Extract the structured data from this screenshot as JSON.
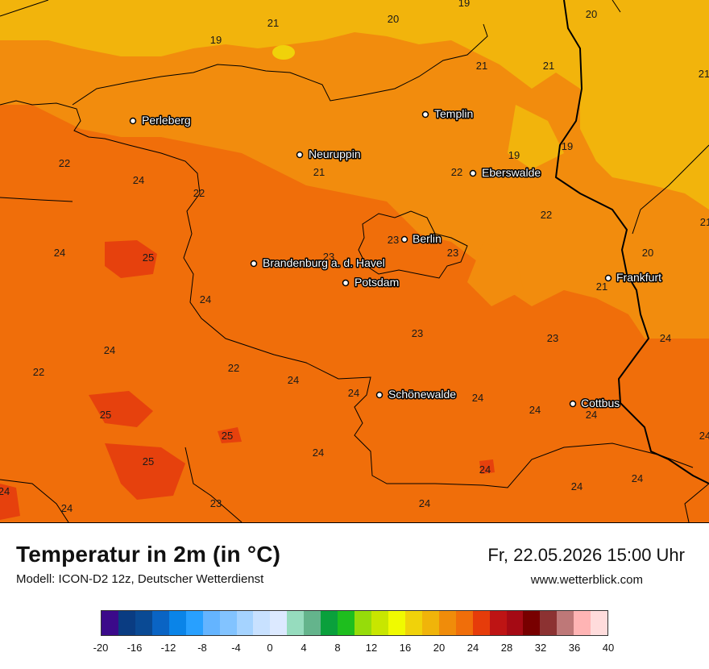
{
  "map": {
    "cities": [
      {
        "name": "Perleberg"
      },
      {
        "name": "Neuruppin"
      },
      {
        "name": "Templin"
      },
      {
        "name": "Eberswalde"
      },
      {
        "name": "Berlin"
      },
      {
        "name": "Brandenburg a. d. Havel"
      },
      {
        "name": "Potsdam"
      },
      {
        "name": "Frankfurt"
      },
      {
        "name": "Schönewalde"
      },
      {
        "name": "Cottbus"
      }
    ],
    "temperature_labels": [
      "19",
      "21",
      "20",
      "19",
      "20",
      "21",
      "21",
      "21",
      "19",
      "22",
      "24",
      "22",
      "21",
      "22",
      "22",
      "19",
      "24",
      "25",
      "23",
      "23",
      "23",
      "20",
      "21",
      "24",
      "24",
      "23",
      "23",
      "22",
      "22",
      "24",
      "24",
      "24",
      "25",
      "25",
      "25",
      "24",
      "24",
      "24",
      "24",
      "24",
      "24",
      "23",
      "24",
      "24",
      "24",
      "24",
      "21",
      "24"
    ]
  },
  "legend": {
    "title": "Temperatur in 2m (in °C)",
    "model": "Modell: ICON-D2 12z, Deutscher Wetterdienst",
    "valid_time": "Fr, 22.05.2026 15:00 Uhr",
    "website": "www.wetterblick.com",
    "scale_colors": [
      "#3b0a8a",
      "#0a3c82",
      "#0a4a94",
      "#0a64c4",
      "#0a84e8",
      "#28a0ff",
      "#64b4ff",
      "#82c3ff",
      "#a5d3ff",
      "#c8e1ff",
      "#dce9ff",
      "#96dcbe",
      "#64b48c",
      "#0aa03c",
      "#1ebe1e",
      "#96dc0a",
      "#c8e600",
      "#f0fa00",
      "#f0d20a",
      "#f0b40a",
      "#f08c0a",
      "#f06e0a",
      "#e63c0a",
      "#be1414",
      "#a50a14",
      "#780000",
      "#8c3232",
      "#be7878",
      "#ffb4b4",
      "#ffdcdc"
    ],
    "scale_ticks": [
      "-20",
      "-16",
      "-12",
      "-8",
      "-4",
      "0",
      "4",
      "8",
      "12",
      "16",
      "20",
      "24",
      "28",
      "32",
      "36",
      "40"
    ]
  },
  "colors": {
    "band_19_20": "#f2b40c",
    "band_20_22": "#f28c0d",
    "band_22_24": "#f06e0a",
    "band_24_26": "#e6410d"
  }
}
